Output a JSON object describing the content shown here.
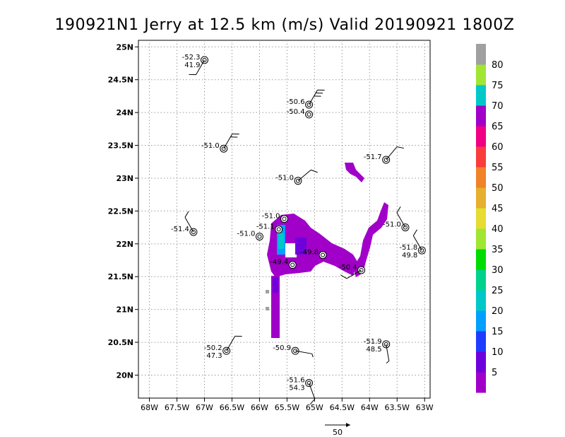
{
  "chart_data": {
    "type": "scatter",
    "title": "190921N1  Jerry at 12.5 km (m/s) Valid 20190921  1800Z",
    "xlim": [
      -68.2,
      -62.9
    ],
    "ylim": [
      19.65,
      25.1
    ],
    "x_ticks": [
      -68,
      -67.5,
      -67,
      -66.5,
      -66,
      -65.5,
      -65,
      -64.5,
      -64,
      -63.5,
      -63
    ],
    "x_tick_labels": [
      "68W",
      "67.5W",
      "67W",
      "66.5W",
      "66W",
      "65.5W",
      "65W",
      "64.5W",
      "64W",
      "63.5W",
      "63W"
    ],
    "y_ticks": [
      20,
      20.5,
      21,
      21.5,
      22,
      22.5,
      23,
      23.5,
      24,
      24.5,
      25
    ],
    "y_tick_labels": [
      "20N",
      "20.5N",
      "21N",
      "21.5N",
      "22N",
      "22.5N",
      "23N",
      "23.5N",
      "24N",
      "24.5N",
      "25N"
    ],
    "grid": true,
    "vector_scale_label": "50",
    "colorbar": {
      "labels": [
        "5",
        "10",
        "15",
        "20",
        "25",
        "30",
        "35",
        "40",
        "45",
        "50",
        "55",
        "60",
        "65",
        "70",
        "75",
        "80"
      ],
      "colors": [
        "#a000c8",
        "#6e00dc",
        "#1e3cff",
        "#00a0ff",
        "#00c8c8",
        "#00d28c",
        "#00dc00",
        "#a0e632",
        "#e6dc32",
        "#e6af2d",
        "#f08228",
        "#fa3c3c",
        "#f00082",
        "#a000c8",
        "#00c8c8",
        "#a0e632",
        "#a0a0a0"
      ]
    },
    "stations": [
      {
        "lon": -67.0,
        "lat": 24.8,
        "t": "-52.3",
        "td": "41.9",
        "wdir": 210,
        "wspd": 10
      },
      {
        "lon": -65.1,
        "lat": 24.12,
        "t": "-50.6",
        "td": "",
        "wdir": 30,
        "wspd": 30
      },
      {
        "lon": -65.1,
        "lat": 23.97,
        "t": "-50.4",
        "td": "",
        "wdir": 0,
        "wspd": 0
      },
      {
        "lon": -66.65,
        "lat": 23.45,
        "t": "-51.0",
        "td": "",
        "wdir": 30,
        "wspd": 20
      },
      {
        "lon": -63.7,
        "lat": 23.28,
        "t": "-51.7",
        "td": "",
        "wdir": 40,
        "wspd": 10
      },
      {
        "lon": -65.3,
        "lat": 22.96,
        "t": "-51.0",
        "td": "",
        "wdir": 50,
        "wspd": 10
      },
      {
        "lon": -67.2,
        "lat": 22.18,
        "t": "-51.4",
        "td": "",
        "wdir": 330,
        "wspd": 10
      },
      {
        "lon": -65.55,
        "lat": 22.38,
        "t": "-51.0",
        "td": "",
        "wdir": 0,
        "wspd": 0
      },
      {
        "lon": -65.65,
        "lat": 22.22,
        "t": "-51.1",
        "td": "",
        "wdir": 0,
        "wspd": 0
      },
      {
        "lon": -66.0,
        "lat": 22.11,
        "t": "-51.0",
        "td": "",
        "wdir": 0,
        "wspd": 0
      },
      {
        "lon": -63.35,
        "lat": 22.25,
        "t": "-51.0",
        "td": "",
        "wdir": 330,
        "wspd": 10
      },
      {
        "lon": -63.05,
        "lat": 21.9,
        "t": "-51.8",
        "td": "49.8",
        "wdir": 330,
        "wspd": 10
      },
      {
        "lon": -64.85,
        "lat": 21.83,
        "t": "-49.8",
        "td": "",
        "wdir": 0,
        "wspd": 0
      },
      {
        "lon": -65.4,
        "lat": 21.68,
        "t": "-49.4",
        "td": "",
        "wdir": 0,
        "wspd": 0
      },
      {
        "lon": -64.15,
        "lat": 21.6,
        "t": "-50.4",
        "td": "",
        "wdir": 240,
        "wspd": 10
      },
      {
        "lon": -63.7,
        "lat": 20.47,
        "t": "-51.9",
        "td": "48.5",
        "wdir": 170,
        "wspd": 5
      },
      {
        "lon": -66.6,
        "lat": 20.37,
        "t": "-50.2",
        "td": "47.3",
        "wdir": 30,
        "wspd": 10
      },
      {
        "lon": -65.35,
        "lat": 20.37,
        "t": "-50.9",
        "td": "",
        "wdir": 100,
        "wspd": 5
      },
      {
        "lon": -65.1,
        "lat": 19.88,
        "t": "-51.6",
        "td": "54.3",
        "wdir": 160,
        "wspd": 10
      }
    ]
  }
}
